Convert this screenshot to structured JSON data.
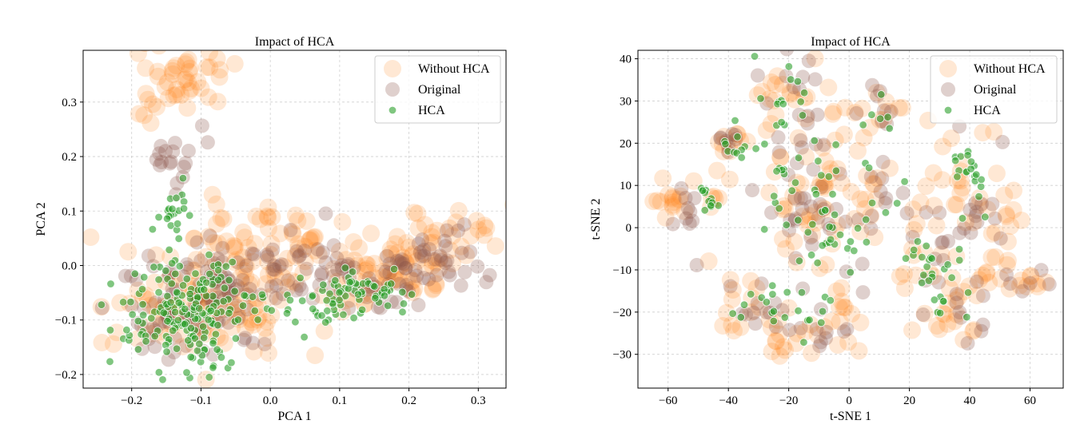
{
  "colors": {
    "without_hca": "#ff7f0e",
    "original": "#8c564b",
    "hca": "#2ca02c",
    "grid": "#b0b0b0",
    "legend_frame": "#cccccc"
  },
  "chart_data": [
    {
      "type": "scatter",
      "title": "Impact of HCA",
      "xlabel": "PCA 1",
      "ylabel": "PCA 2",
      "xlim": [
        -0.27,
        0.34
      ],
      "ylim": [
        -0.225,
        0.395
      ],
      "xticks": [
        -0.2,
        -0.1,
        0.0,
        0.1,
        0.2,
        0.3
      ],
      "xtick_labels": [
        "−0.2",
        "−0.1",
        "0.0",
        "0.1",
        "0.2",
        "0.3"
      ],
      "yticks": [
        -0.2,
        -0.1,
        0.0,
        0.1,
        0.2,
        0.3
      ],
      "ytick_labels": [
        "−0.2",
        "−0.1",
        "0.0",
        "0.1",
        "0.2",
        "0.3"
      ],
      "grid": true,
      "legend": "top-right",
      "legend_entries": [
        "Without HCA",
        "Original",
        "HCA"
      ],
      "series": [
        {
          "name": "Without HCA",
          "clusters": [
            {
              "c": [
                -0.13,
                0.34
              ],
              "s": [
                0.04,
                0.03
              ],
              "n": 40
            },
            {
              "c": [
                -0.17,
                0.27
              ],
              "s": [
                0.02,
                0.02
              ],
              "n": 6
            },
            {
              "c": [
                -0.12,
                -0.08
              ],
              "s": [
                0.05,
                0.05
              ],
              "n": 80
            },
            {
              "c": [
                -0.05,
                0.05
              ],
              "s": [
                0.06,
                0.04
              ],
              "n": 40
            },
            {
              "c": [
                -0.03,
                -0.05
              ],
              "s": [
                0.05,
                0.05
              ],
              "n": 40
            },
            {
              "c": [
                0.05,
                0.03
              ],
              "s": [
                0.04,
                0.03
              ],
              "n": 15
            },
            {
              "c": [
                0.15,
                -0.02
              ],
              "s": [
                0.05,
                0.04
              ],
              "n": 45
            },
            {
              "c": [
                0.22,
                0.02
              ],
              "s": [
                0.04,
                0.04
              ],
              "n": 35
            },
            {
              "c": [
                0.28,
                0.07
              ],
              "s": [
                0.03,
                0.02
              ],
              "n": 15
            }
          ]
        },
        {
          "name": "Original",
          "clusters": [
            {
              "c": [
                -0.14,
                0.2
              ],
              "s": [
                0.02,
                0.03
              ],
              "n": 18
            },
            {
              "c": [
                -0.12,
                -0.08
              ],
              "s": [
                0.05,
                0.05
              ],
              "n": 70
            },
            {
              "c": [
                -0.05,
                -0.03
              ],
              "s": [
                0.05,
                0.04
              ],
              "n": 40
            },
            {
              "c": [
                0.05,
                0.02
              ],
              "s": [
                0.04,
                0.03
              ],
              "n": 15
            },
            {
              "c": [
                0.14,
                -0.03
              ],
              "s": [
                0.05,
                0.03
              ],
              "n": 40
            },
            {
              "c": [
                0.22,
                0.0
              ],
              "s": [
                0.04,
                0.03
              ],
              "n": 30
            },
            {
              "c": [
                0.28,
                0.02
              ],
              "s": [
                0.02,
                0.03
              ],
              "n": 8
            }
          ]
        },
        {
          "name": "HCA",
          "clusters": [
            {
              "c": [
                -0.19,
                -0.1
              ],
              "s": [
                0.03,
                0.04
              ],
              "n": 20
            },
            {
              "c": [
                -0.12,
                -0.1
              ],
              "s": [
                0.04,
                0.05
              ],
              "n": 120
            },
            {
              "c": [
                -0.14,
                0.1
              ],
              "s": [
                0.015,
                0.025
              ],
              "n": 22
            },
            {
              "c": [
                -0.08,
                -0.05
              ],
              "s": [
                0.04,
                0.04
              ],
              "n": 40
            },
            {
              "c": [
                0.08,
                -0.08
              ],
              "s": [
                0.03,
                0.02
              ],
              "n": 15
            },
            {
              "c": [
                0.14,
                -0.04
              ],
              "s": [
                0.03,
                0.02
              ],
              "n": 55
            },
            {
              "c": [
                0.04,
                -0.08
              ],
              "s": [
                0.02,
                0.02
              ],
              "n": 8
            }
          ]
        }
      ]
    },
    {
      "type": "scatter",
      "title": "Impact of HCA",
      "xlabel": "t-SNE 1",
      "ylabel": "t-SNE 2",
      "xlim": [
        -70,
        71
      ],
      "ylim": [
        -38,
        42
      ],
      "xticks": [
        -60,
        -40,
        -20,
        0,
        20,
        40,
        60
      ],
      "xtick_labels": [
        "−60",
        "−40",
        "−20",
        "0",
        "20",
        "40",
        "60"
      ],
      "yticks": [
        -30,
        -20,
        -10,
        0,
        10,
        20,
        30,
        40
      ],
      "ytick_labels": [
        "−30",
        "−20",
        "−10",
        "0",
        "10",
        "20",
        "30",
        "40"
      ],
      "grid": true,
      "legend": "top-right",
      "legend_entries": [
        "Without HCA",
        "Original",
        "HCA"
      ],
      "series": [
        {
          "name": "Without HCA",
          "clusters": [
            {
              "c": [
                -58,
                5
              ],
              "s": [
                3,
                4
              ],
              "n": 14
            },
            {
              "c": [
                -45,
                8
              ],
              "s": [
                3,
                4
              ],
              "n": 8
            },
            {
              "c": [
                -40,
                20
              ],
              "s": [
                3,
                2
              ],
              "n": 10
            },
            {
              "c": [
                -20,
                30
              ],
              "s": [
                6,
                5
              ],
              "n": 20
            },
            {
              "c": [
                -15,
                5
              ],
              "s": [
                8,
                8
              ],
              "n": 40
            },
            {
              "c": [
                -35,
                -20
              ],
              "s": [
                4,
                4
              ],
              "n": 15
            },
            {
              "c": [
                -20,
                -25
              ],
              "s": [
                5,
                4
              ],
              "n": 15
            },
            {
              "c": [
                -5,
                -20
              ],
              "s": [
                6,
                5
              ],
              "n": 15
            },
            {
              "c": [
                0,
                25
              ],
              "s": [
                5,
                6
              ],
              "n": 10
            },
            {
              "c": [
                12,
                28
              ],
              "s": [
                4,
                3
              ],
              "n": 10
            },
            {
              "c": [
                8,
                5
              ],
              "s": [
                5,
                6
              ],
              "n": 15
            },
            {
              "c": [
                25,
                -5
              ],
              "s": [
                5,
                7
              ],
              "n": 15
            },
            {
              "c": [
                40,
                10
              ],
              "s": [
                6,
                6
              ],
              "n": 20
            },
            {
              "c": [
                45,
                -10
              ],
              "s": [
                5,
                5
              ],
              "n": 15
            },
            {
              "c": [
                40,
                -22
              ],
              "s": [
                4,
                3
              ],
              "n": 8
            },
            {
              "c": [
                60,
                -13
              ],
              "s": [
                3,
                2
              ],
              "n": 8
            },
            {
              "c": [
                52,
                3
              ],
              "s": [
                4,
                6
              ],
              "n": 10
            },
            {
              "c": [
                30,
                -18
              ],
              "s": [
                5,
                5
              ],
              "n": 10
            }
          ]
        },
        {
          "name": "Original",
          "clusters": [
            {
              "c": [
                -56,
                4
              ],
              "s": [
                3,
                4
              ],
              "n": 10
            },
            {
              "c": [
                -40,
                20
              ],
              "s": [
                3,
                2
              ],
              "n": 8
            },
            {
              "c": [
                -20,
                30
              ],
              "s": [
                6,
                5
              ],
              "n": 15
            },
            {
              "c": [
                -15,
                5
              ],
              "s": [
                8,
                8
              ],
              "n": 30
            },
            {
              "c": [
                -30,
                -20
              ],
              "s": [
                5,
                4
              ],
              "n": 12
            },
            {
              "c": [
                -10,
                -22
              ],
              "s": [
                6,
                5
              ],
              "n": 12
            },
            {
              "c": [
                8,
                5
              ],
              "s": [
                5,
                6
              ],
              "n": 12
            },
            {
              "c": [
                10,
                28
              ],
              "s": [
                4,
                3
              ],
              "n": 8
            },
            {
              "c": [
                26,
                -5
              ],
              "s": [
                5,
                6
              ],
              "n": 12
            },
            {
              "c": [
                42,
                5
              ],
              "s": [
                6,
                8
              ],
              "n": 15
            },
            {
              "c": [
                40,
                -20
              ],
              "s": [
                4,
                4
              ],
              "n": 8
            },
            {
              "c": [
                60,
                -13
              ],
              "s": [
                3,
                2
              ],
              "n": 6
            }
          ]
        },
        {
          "name": "HCA",
          "clusters": [
            {
              "c": [
                -47,
                7
              ],
              "s": [
                2,
                2
              ],
              "n": 12
            },
            {
              "c": [
                -38,
                20
              ],
              "s": [
                3,
                2
              ],
              "n": 10
            },
            {
              "c": [
                -20,
                30
              ],
              "s": [
                6,
                5
              ],
              "n": 15
            },
            {
              "c": [
                -15,
                5
              ],
              "s": [
                8,
                8
              ],
              "n": 30
            },
            {
              "c": [
                -5,
                0
              ],
              "s": [
                5,
                6
              ],
              "n": 15
            },
            {
              "c": [
                -30,
                -20
              ],
              "s": [
                5,
                4
              ],
              "n": 10
            },
            {
              "c": [
                -12,
                -20
              ],
              "s": [
                5,
                4
              ],
              "n": 12
            },
            {
              "c": [
                8,
                5
              ],
              "s": [
                5,
                6
              ],
              "n": 10
            },
            {
              "c": [
                10,
                28
              ],
              "s": [
                3,
                3
              ],
              "n": 6
            },
            {
              "c": [
                40,
                12
              ],
              "s": [
                3,
                4
              ],
              "n": 20
            },
            {
              "c": [
                32,
                -12
              ],
              "s": [
                4,
                5
              ],
              "n": 20
            },
            {
              "c": [
                25,
                -6
              ],
              "s": [
                3,
                2
              ],
              "n": 8
            }
          ]
        }
      ]
    }
  ]
}
